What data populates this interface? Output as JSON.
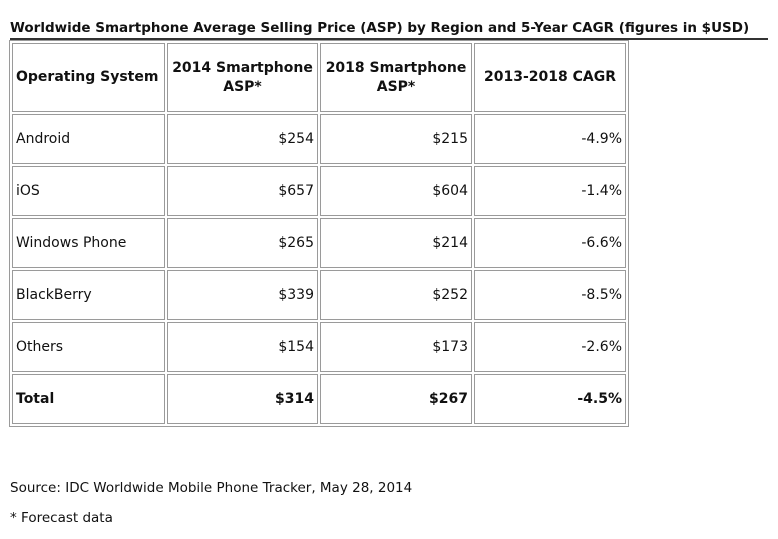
{
  "title": "Worldwide Smartphone Average Selling Price (ASP) by Region and 5-Year CAGR (figures in $USD)",
  "table": {
    "headers": {
      "os": "Operating System",
      "asp2014": "2014 Smartphone ASP*",
      "asp2018": "2018 Smartphone ASP*",
      "cagr": "2013-2018 CAGR"
    },
    "rows": [
      {
        "os": "Android",
        "asp2014": "$254",
        "asp2018": "$215",
        "cagr": "-4.9%"
      },
      {
        "os": "iOS",
        "asp2014": "$657",
        "asp2018": "$604",
        "cagr": "-1.4%"
      },
      {
        "os": "Windows Phone",
        "asp2014": "$265",
        "asp2018": "$214",
        "cagr": "-6.6%"
      },
      {
        "os": "BlackBerry",
        "asp2014": "$339",
        "asp2018": "$252",
        "cagr": "-8.5%"
      },
      {
        "os": "Others",
        "asp2014": "$154",
        "asp2018": "$173",
        "cagr": "-2.6%"
      }
    ],
    "total": {
      "os": "Total",
      "asp2014": "$314",
      "asp2018": "$267",
      "cagr": "-4.5%"
    }
  },
  "source": "Source: IDC Worldwide Mobile Phone Tracker, May 28, 2014",
  "footnote": "* Forecast data"
}
